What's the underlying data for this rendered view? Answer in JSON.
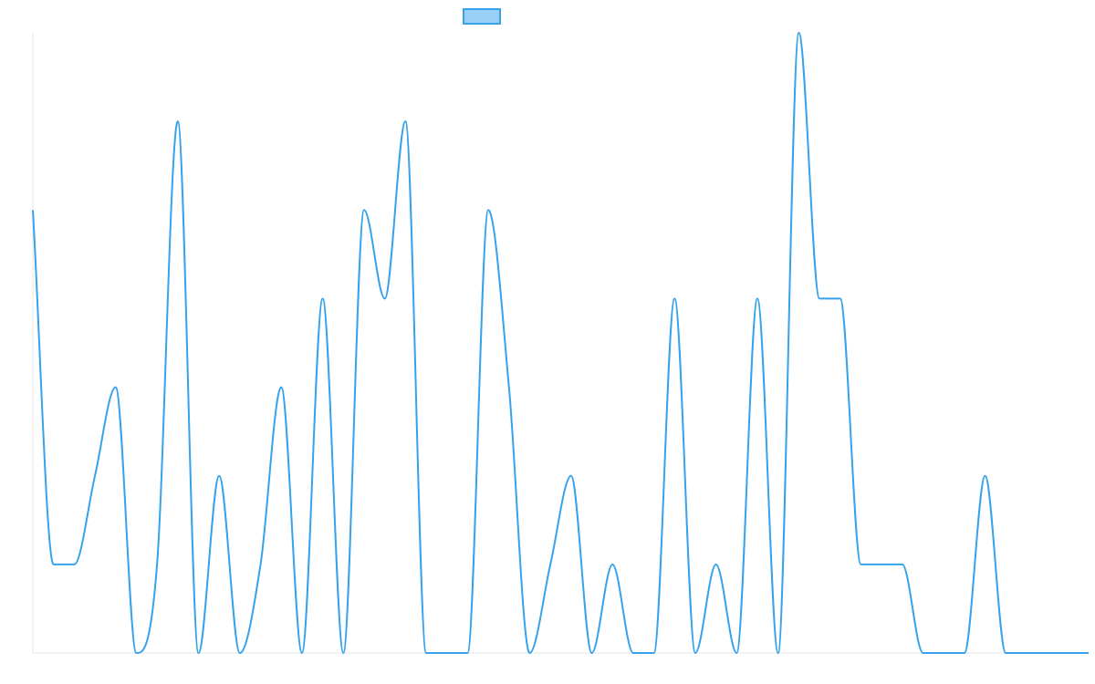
{
  "chart_data": {
    "type": "line",
    "title": "",
    "xlabel": "",
    "ylabel": "",
    "x": [
      0,
      1,
      2,
      3,
      4,
      5,
      6,
      7,
      8,
      9,
      10,
      11,
      12,
      13,
      14,
      15,
      16,
      17,
      18,
      19,
      20,
      21,
      22,
      23,
      24,
      25,
      26,
      27,
      28,
      29,
      30,
      31,
      32,
      33,
      34,
      35,
      36,
      37,
      38,
      39,
      40,
      41,
      42,
      43,
      44,
      45,
      46,
      47,
      48,
      49,
      50,
      51
    ],
    "ylim": [
      0,
      7
    ],
    "grid": false,
    "legend_position": "top-center",
    "series": [
      {
        "name": "",
        "color": "#36a2eb",
        "fill": "#9ad0f5",
        "values": [
          5,
          1,
          1,
          2,
          3,
          0,
          1,
          6,
          0,
          2,
          0,
          1,
          3,
          0,
          4,
          0,
          5,
          4,
          6,
          0,
          0,
          0,
          5,
          3,
          0,
          1,
          2,
          0,
          1,
          0,
          0,
          4,
          0,
          1,
          0,
          4,
          0,
          7,
          4,
          4,
          1,
          1,
          1,
          0,
          0,
          0,
          2,
          0,
          0,
          0,
          0,
          0
        ]
      }
    ]
  }
}
